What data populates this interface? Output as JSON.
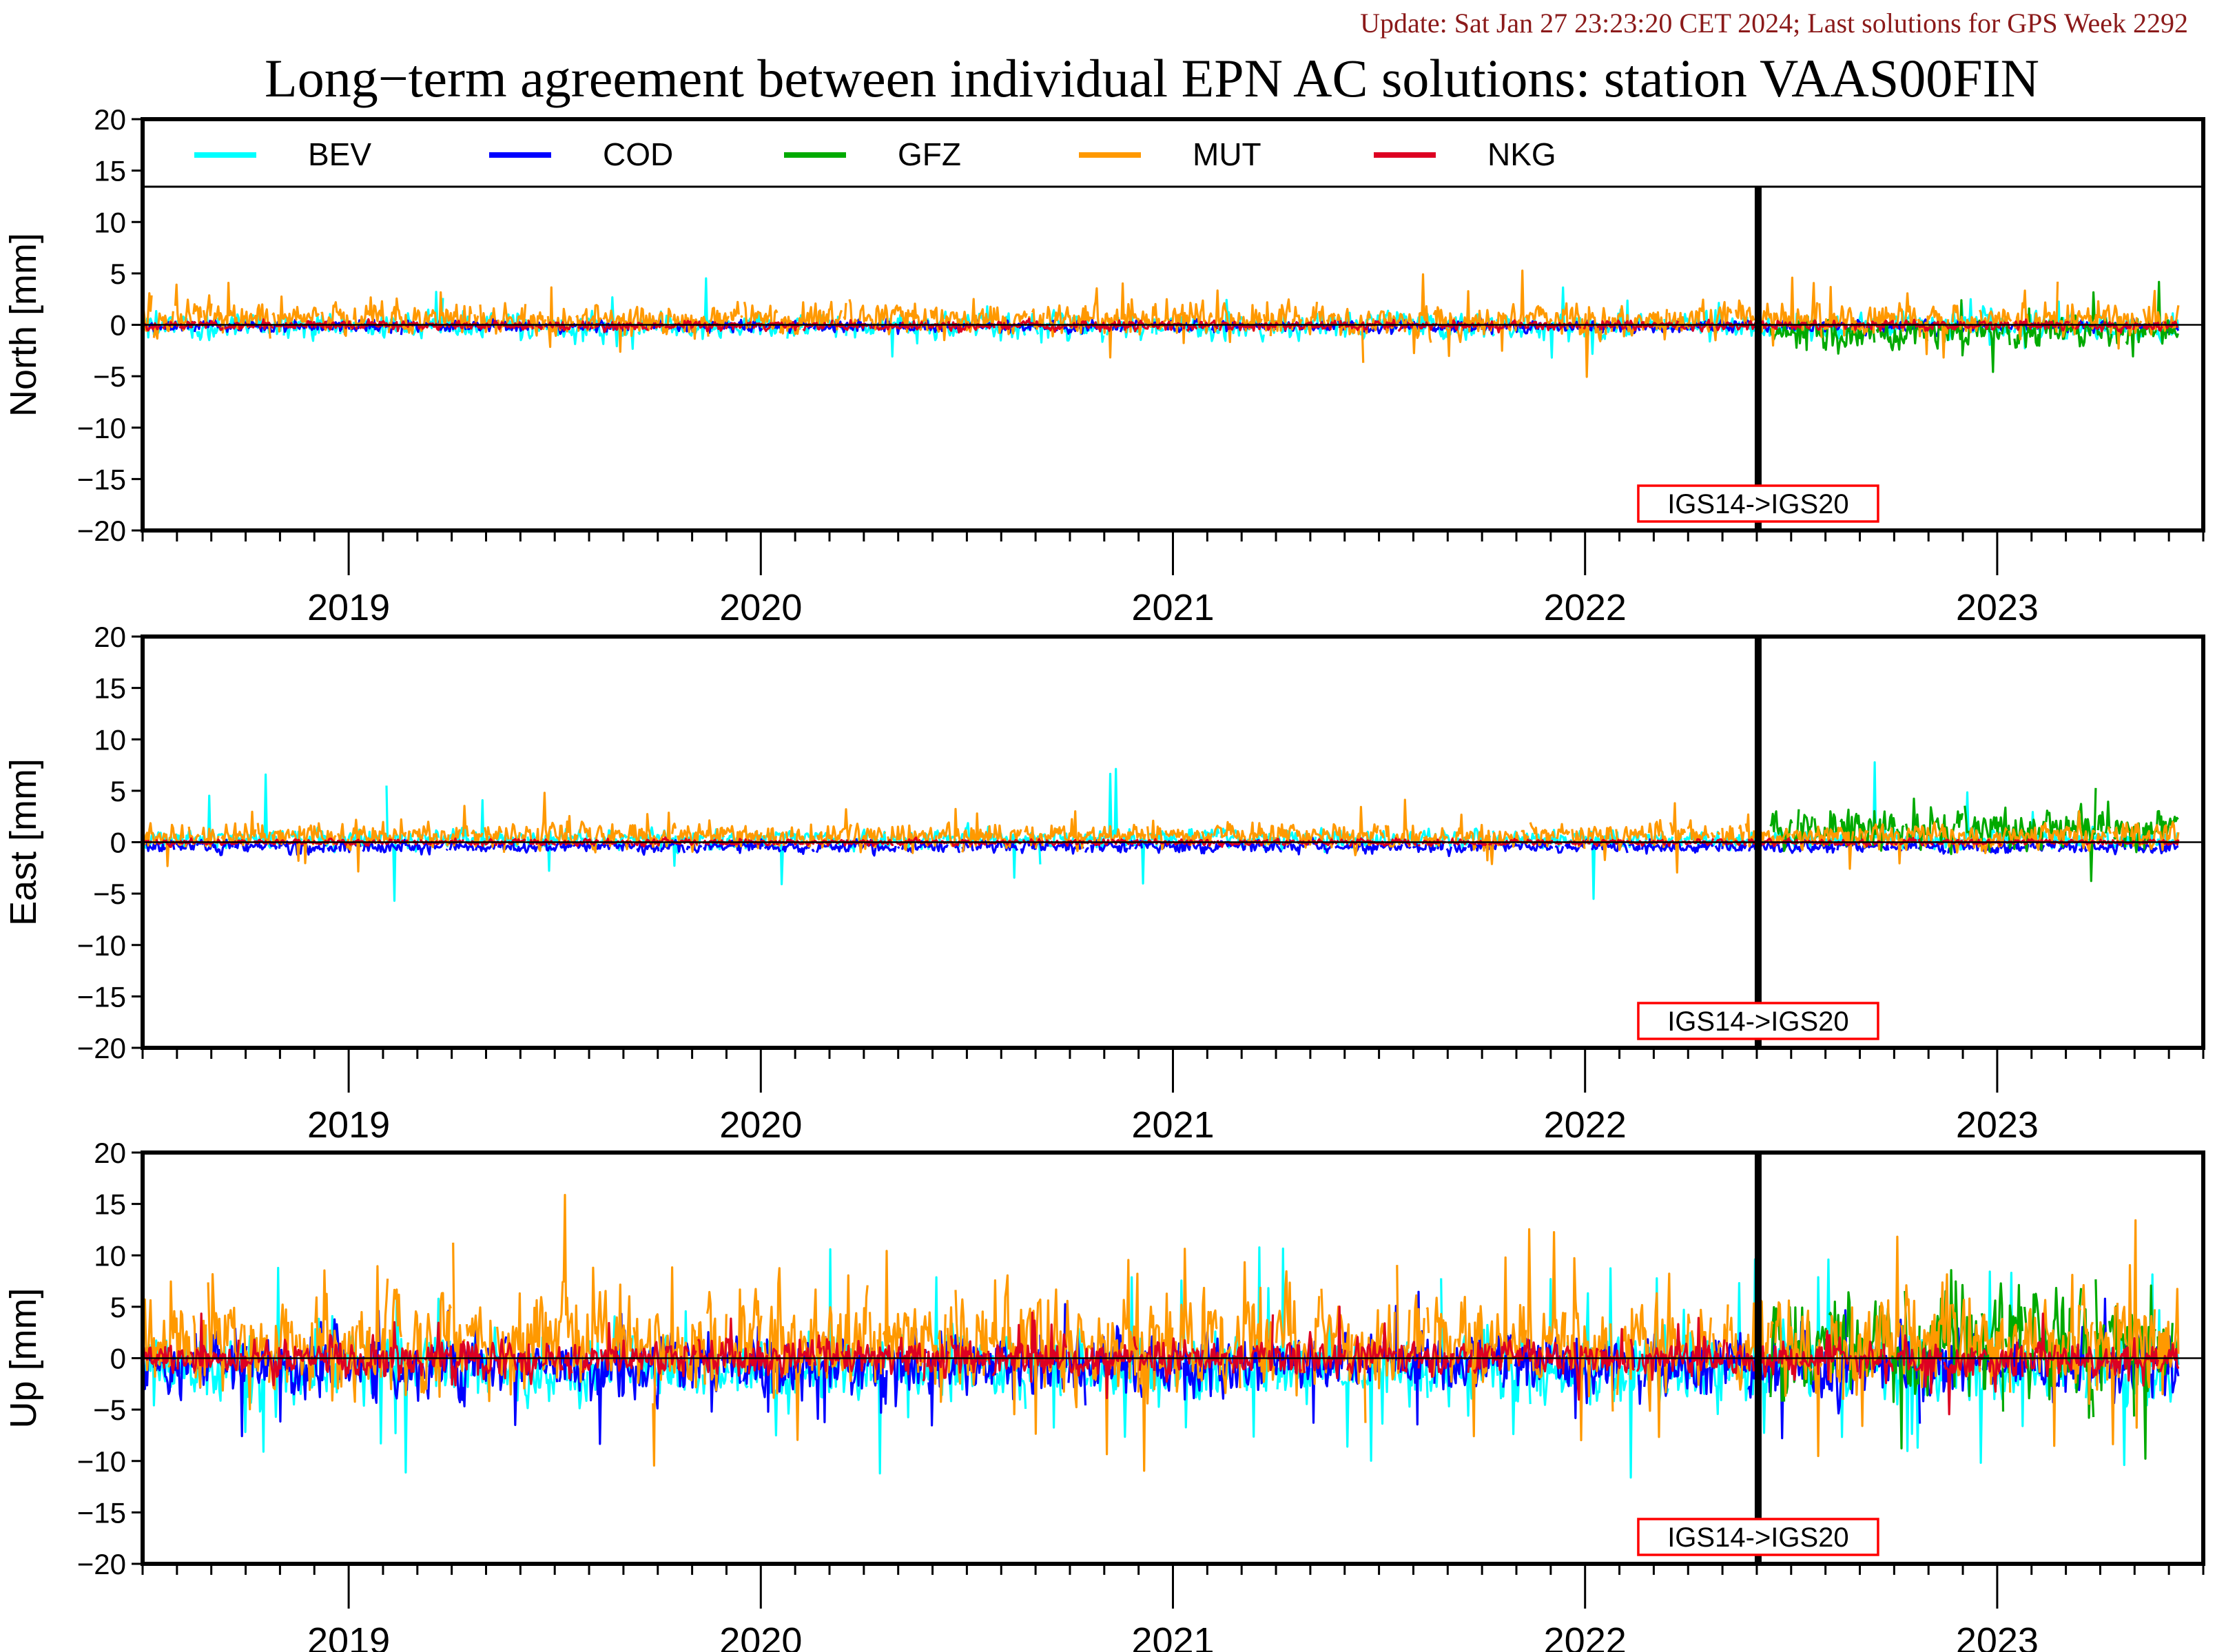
{
  "header": {
    "update_text": "Update: Sat Jan 27 23:23:20 CET 2024; Last solutions for GPS Week 2292",
    "title": "Long−term agreement between individual EPN AC solutions: station VAAS00FIN"
  },
  "colors": {
    "BEV": "#00ffff",
    "COD": "#0000ff",
    "GFZ": "#00aa00",
    "MUT": "#ff9900",
    "NKG": "#dd0022",
    "update_text": "#8b1a1a",
    "frame_change_box": "#ff0000"
  },
  "chart_data": [
    {
      "type": "line",
      "ylabel": "North [mm]",
      "ylim": [
        -20,
        20
      ],
      "yticks": [
        20,
        15,
        10,
        5,
        0,
        -5,
        -10,
        -15,
        -20
      ],
      "xlim": [
        2018.5,
        2023.5
      ],
      "year_labels": [
        "2019",
        "2020",
        "2021",
        "2022",
        "2023"
      ],
      "legend": [
        "BEV",
        "COD",
        "GFZ",
        "MUT",
        "NKG"
      ],
      "legend_position": "top",
      "grid": false,
      "frame_change": {
        "x": 2022.42,
        "label": "IGS14->IGS20"
      },
      "series": [
        {
          "name": "BEV",
          "x_range": [
            2018.5,
            2023.44
          ],
          "mean": -0.2,
          "spread": 0.8,
          "spike_rate": 0.02,
          "spike_size": 2.0
        },
        {
          "name": "COD",
          "x_range": [
            2018.5,
            2023.44
          ],
          "mean": -0.2,
          "spread": 0.4,
          "spike_rate": 0.0,
          "spike_size": 0
        },
        {
          "name": "GFZ",
          "x_range": [
            2022.45,
            2023.44
          ],
          "mean": -0.9,
          "spread": 1.0,
          "spike_rate": 0.02,
          "spike_size": 2.5
        },
        {
          "name": "MUT",
          "x_range": [
            2018.5,
            2023.44
          ],
          "mean": 0.7,
          "spread": 1.0,
          "spike_rate": 0.03,
          "spike_size": 2.5
        },
        {
          "name": "NKG",
          "x_range": [
            2018.5,
            2023.44
          ],
          "mean": -0.1,
          "spread": 0.3,
          "spike_rate": 0.0,
          "spike_size": 0
        }
      ]
    },
    {
      "type": "line",
      "ylabel": "East [mm]",
      "ylim": [
        -20,
        20
      ],
      "yticks": [
        20,
        15,
        10,
        5,
        0,
        -5,
        -10,
        -15,
        -20
      ],
      "xlim": [
        2018.5,
        2023.5
      ],
      "year_labels": [
        "2019",
        "2020",
        "2021",
        "2022",
        "2023"
      ],
      "legend": [
        "BEV",
        "COD",
        "GFZ",
        "MUT",
        "NKG"
      ],
      "legend_position": "top",
      "grid": false,
      "frame_change": {
        "x": 2022.42,
        "label": "IGS14->IGS20"
      },
      "series": [
        {
          "name": "BEV",
          "x_range": [
            2018.5,
            2023.44
          ],
          "mean": 0.4,
          "spread": 0.6,
          "spike_rate": 0.01,
          "spike_size": 4.5
        },
        {
          "name": "COD",
          "x_range": [
            2018.5,
            2023.44
          ],
          "mean": -0.6,
          "spread": 0.4,
          "spike_rate": 0.0,
          "spike_size": 0
        },
        {
          "name": "GFZ",
          "x_range": [
            2022.45,
            2023.44
          ],
          "mean": 1.8,
          "spread": 1.3,
          "spike_rate": 0.02,
          "spike_size": 2.5
        },
        {
          "name": "MUT",
          "x_range": [
            2018.5,
            2023.44
          ],
          "mean": 0.8,
          "spread": 0.8,
          "spike_rate": 0.02,
          "spike_size": 2.0
        },
        {
          "name": "NKG",
          "x_range": [
            2018.5,
            2023.44
          ],
          "mean": 0.0,
          "spread": 0.2,
          "spike_rate": 0.0,
          "spike_size": 0
        }
      ]
    },
    {
      "type": "line",
      "ylabel": "Up [mm]",
      "ylim": [
        -20,
        20
      ],
      "yticks": [
        20,
        15,
        10,
        5,
        0,
        -5,
        -10,
        -15,
        -20
      ],
      "xlim": [
        2018.5,
        2023.5
      ],
      "year_labels": [
        "2019",
        "2020",
        "2021",
        "2022",
        "2023"
      ],
      "legend": [
        "BEV",
        "COD",
        "GFZ",
        "MUT",
        "NKG"
      ],
      "legend_position": "top",
      "grid": false,
      "frame_change": {
        "x": 2022.42,
        "label": "IGS14->IGS20"
      },
      "series": [
        {
          "name": "BEV",
          "x_range": [
            2018.5,
            2023.44
          ],
          "mean": -1.5,
          "spread": 2.2,
          "spike_rate": 0.04,
          "spike_size": 5.5
        },
        {
          "name": "COD",
          "x_range": [
            2018.5,
            2023.44
          ],
          "mean": -1.0,
          "spread": 2.0,
          "spike_rate": 0.03,
          "spike_size": 4.0
        },
        {
          "name": "GFZ",
          "x_range": [
            2022.45,
            2023.44
          ],
          "mean": 1.5,
          "spread": 3.5,
          "spike_rate": 0.04,
          "spike_size": 5.0
        },
        {
          "name": "MUT",
          "x_range": [
            2018.5,
            2023.44
          ],
          "mean": 2.0,
          "spread": 3.0,
          "spike_rate": 0.05,
          "spike_size": 6.0
        },
        {
          "name": "NKG",
          "x_range": [
            2018.5,
            2023.44
          ],
          "mean": 0.0,
          "spread": 1.2,
          "spike_rate": 0.02,
          "spike_size": 2.5
        }
      ]
    }
  ]
}
